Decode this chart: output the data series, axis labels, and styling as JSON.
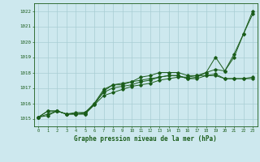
{
  "title": "Graphe pression niveau de la mer (hPa)",
  "xlabel_hours": [
    0,
    1,
    2,
    3,
    4,
    5,
    6,
    7,
    8,
    9,
    10,
    11,
    12,
    13,
    14,
    15,
    16,
    17,
    18,
    19,
    20,
    21,
    22,
    23
  ],
  "ylim": [
    1014.5,
    1022.5
  ],
  "yticks": [
    1015,
    1016,
    1017,
    1018,
    1019,
    1020,
    1021,
    1022
  ],
  "bg_color": "#cde8ee",
  "grid_color": "#a8cdd4",
  "line_color": "#1a5c1a",
  "line1": [
    1015.1,
    1015.5,
    1015.5,
    1015.3,
    1015.3,
    1015.3,
    1015.9,
    1016.8,
    1017.2,
    1017.2,
    1017.4,
    1017.7,
    1017.8,
    1018.0,
    1018.0,
    1018.0,
    1017.8,
    1017.8,
    1018.0,
    1019.0,
    1018.1,
    1019.2,
    1020.5,
    1021.8
  ],
  "line2": [
    1015.1,
    1015.5,
    1015.5,
    1015.3,
    1015.3,
    1015.4,
    1016.0,
    1016.9,
    1017.2,
    1017.3,
    1017.4,
    1017.5,
    1017.6,
    1017.7,
    1017.8,
    1017.8,
    1017.6,
    1017.6,
    1017.8,
    1017.9,
    1017.6,
    1017.6,
    1017.6,
    1017.6
  ],
  "line3": [
    1015.1,
    1015.2,
    1015.5,
    1015.3,
    1015.4,
    1015.4,
    1015.9,
    1016.5,
    1016.7,
    1016.9,
    1017.1,
    1017.2,
    1017.3,
    1017.5,
    1017.6,
    1017.7,
    1017.7,
    1017.8,
    1017.8,
    1017.8,
    1017.6,
    1017.6,
    1017.6,
    1017.7
  ],
  "line4": [
    1015.1,
    1015.3,
    1015.5,
    1015.3,
    1015.3,
    1015.3,
    1016.0,
    1016.7,
    1017.0,
    1017.1,
    1017.2,
    1017.4,
    1017.5,
    1017.7,
    1017.8,
    1017.8,
    1017.6,
    1017.7,
    1018.0,
    1018.2,
    1018.1,
    1019.0,
    1020.5,
    1022.0
  ]
}
